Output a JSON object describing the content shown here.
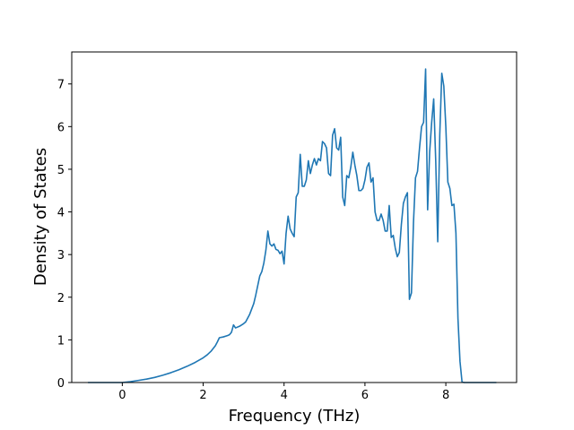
{
  "chart_data": {
    "type": "line",
    "title": "",
    "xlabel": "Frequency (THz)",
    "ylabel": "Density of States",
    "xlim": [
      -1.25,
      9.75
    ],
    "ylim": [
      0,
      7.75
    ],
    "xticks": [
      0,
      2,
      4,
      6,
      8
    ],
    "yticks": [
      0,
      1,
      2,
      3,
      4,
      5,
      6,
      7
    ],
    "grid": false,
    "legend": "none",
    "series": [
      {
        "color": "#1f77b4",
        "x": [
          -0.85,
          -0.6,
          -0.4,
          -0.2,
          0.0,
          0.2,
          0.4,
          0.6,
          0.8,
          1.0,
          1.2,
          1.4,
          1.6,
          1.8,
          2.0,
          2.1,
          2.2,
          2.3,
          2.35,
          2.4,
          2.5,
          2.6,
          2.65,
          2.7,
          2.75,
          2.8,
          2.9,
          3.0,
          3.05,
          3.15,
          3.25,
          3.3,
          3.4,
          3.45,
          3.5,
          3.55,
          3.6,
          3.65,
          3.7,
          3.75,
          3.8,
          3.85,
          3.9,
          3.95,
          4.0,
          4.05,
          4.1,
          4.15,
          4.2,
          4.25,
          4.3,
          4.35,
          4.4,
          4.45,
          4.5,
          4.55,
          4.6,
          4.65,
          4.7,
          4.75,
          4.8,
          4.85,
          4.9,
          4.95,
          5.0,
          5.05,
          5.1,
          5.15,
          5.2,
          5.25,
          5.3,
          5.35,
          5.4,
          5.45,
          5.5,
          5.55,
          5.6,
          5.65,
          5.7,
          5.75,
          5.8,
          5.85,
          5.9,
          5.95,
          6.0,
          6.05,
          6.1,
          6.15,
          6.2,
          6.25,
          6.3,
          6.35,
          6.4,
          6.45,
          6.5,
          6.55,
          6.6,
          6.65,
          6.7,
          6.75,
          6.8,
          6.85,
          6.9,
          6.95,
          7.0,
          7.05,
          7.1,
          7.15,
          7.2,
          7.25,
          7.3,
          7.35,
          7.4,
          7.45,
          7.5,
          7.55,
          7.6,
          7.65,
          7.7,
          7.75,
          7.8,
          7.85,
          7.9,
          7.95,
          8.0,
          8.05,
          8.1,
          8.15,
          8.2,
          8.25,
          8.3,
          8.35,
          8.4,
          8.45,
          9.25
        ],
        "y": [
          0,
          0,
          0,
          0,
          0.0,
          0.02,
          0.05,
          0.08,
          0.12,
          0.17,
          0.23,
          0.3,
          0.38,
          0.47,
          0.58,
          0.65,
          0.74,
          0.86,
          0.95,
          1.05,
          1.07,
          1.1,
          1.12,
          1.18,
          1.35,
          1.28,
          1.32,
          1.38,
          1.42,
          1.6,
          1.85,
          2.05,
          2.5,
          2.6,
          2.8,
          3.1,
          3.55,
          3.25,
          3.2,
          3.25,
          3.12,
          3.1,
          3.02,
          3.08,
          2.78,
          3.5,
          3.9,
          3.6,
          3.5,
          3.42,
          4.35,
          4.45,
          5.35,
          4.6,
          4.6,
          4.75,
          5.2,
          4.9,
          5.1,
          5.25,
          5.1,
          5.25,
          5.2,
          5.65,
          5.6,
          5.5,
          4.9,
          4.85,
          5.8,
          5.95,
          5.5,
          5.45,
          5.75,
          4.35,
          4.15,
          4.85,
          4.8,
          5.05,
          5.4,
          5.1,
          4.85,
          4.5,
          4.5,
          4.55,
          4.75,
          5.05,
          5.15,
          4.7,
          4.8,
          4.0,
          3.8,
          3.8,
          3.95,
          3.8,
          3.55,
          3.55,
          4.15,
          3.4,
          3.45,
          3.15,
          2.95,
          3.05,
          3.7,
          4.2,
          4.35,
          4.45,
          1.95,
          2.1,
          3.75,
          4.8,
          4.95,
          5.5,
          6.0,
          6.1,
          7.35,
          4.05,
          5.4,
          6.1,
          6.65,
          5.2,
          3.3,
          5.8,
          7.25,
          6.95,
          6.0,
          4.7,
          4.55,
          4.15,
          4.18,
          3.5,
          1.5,
          0.5,
          0.02,
          0.0,
          0.0
        ]
      }
    ]
  }
}
